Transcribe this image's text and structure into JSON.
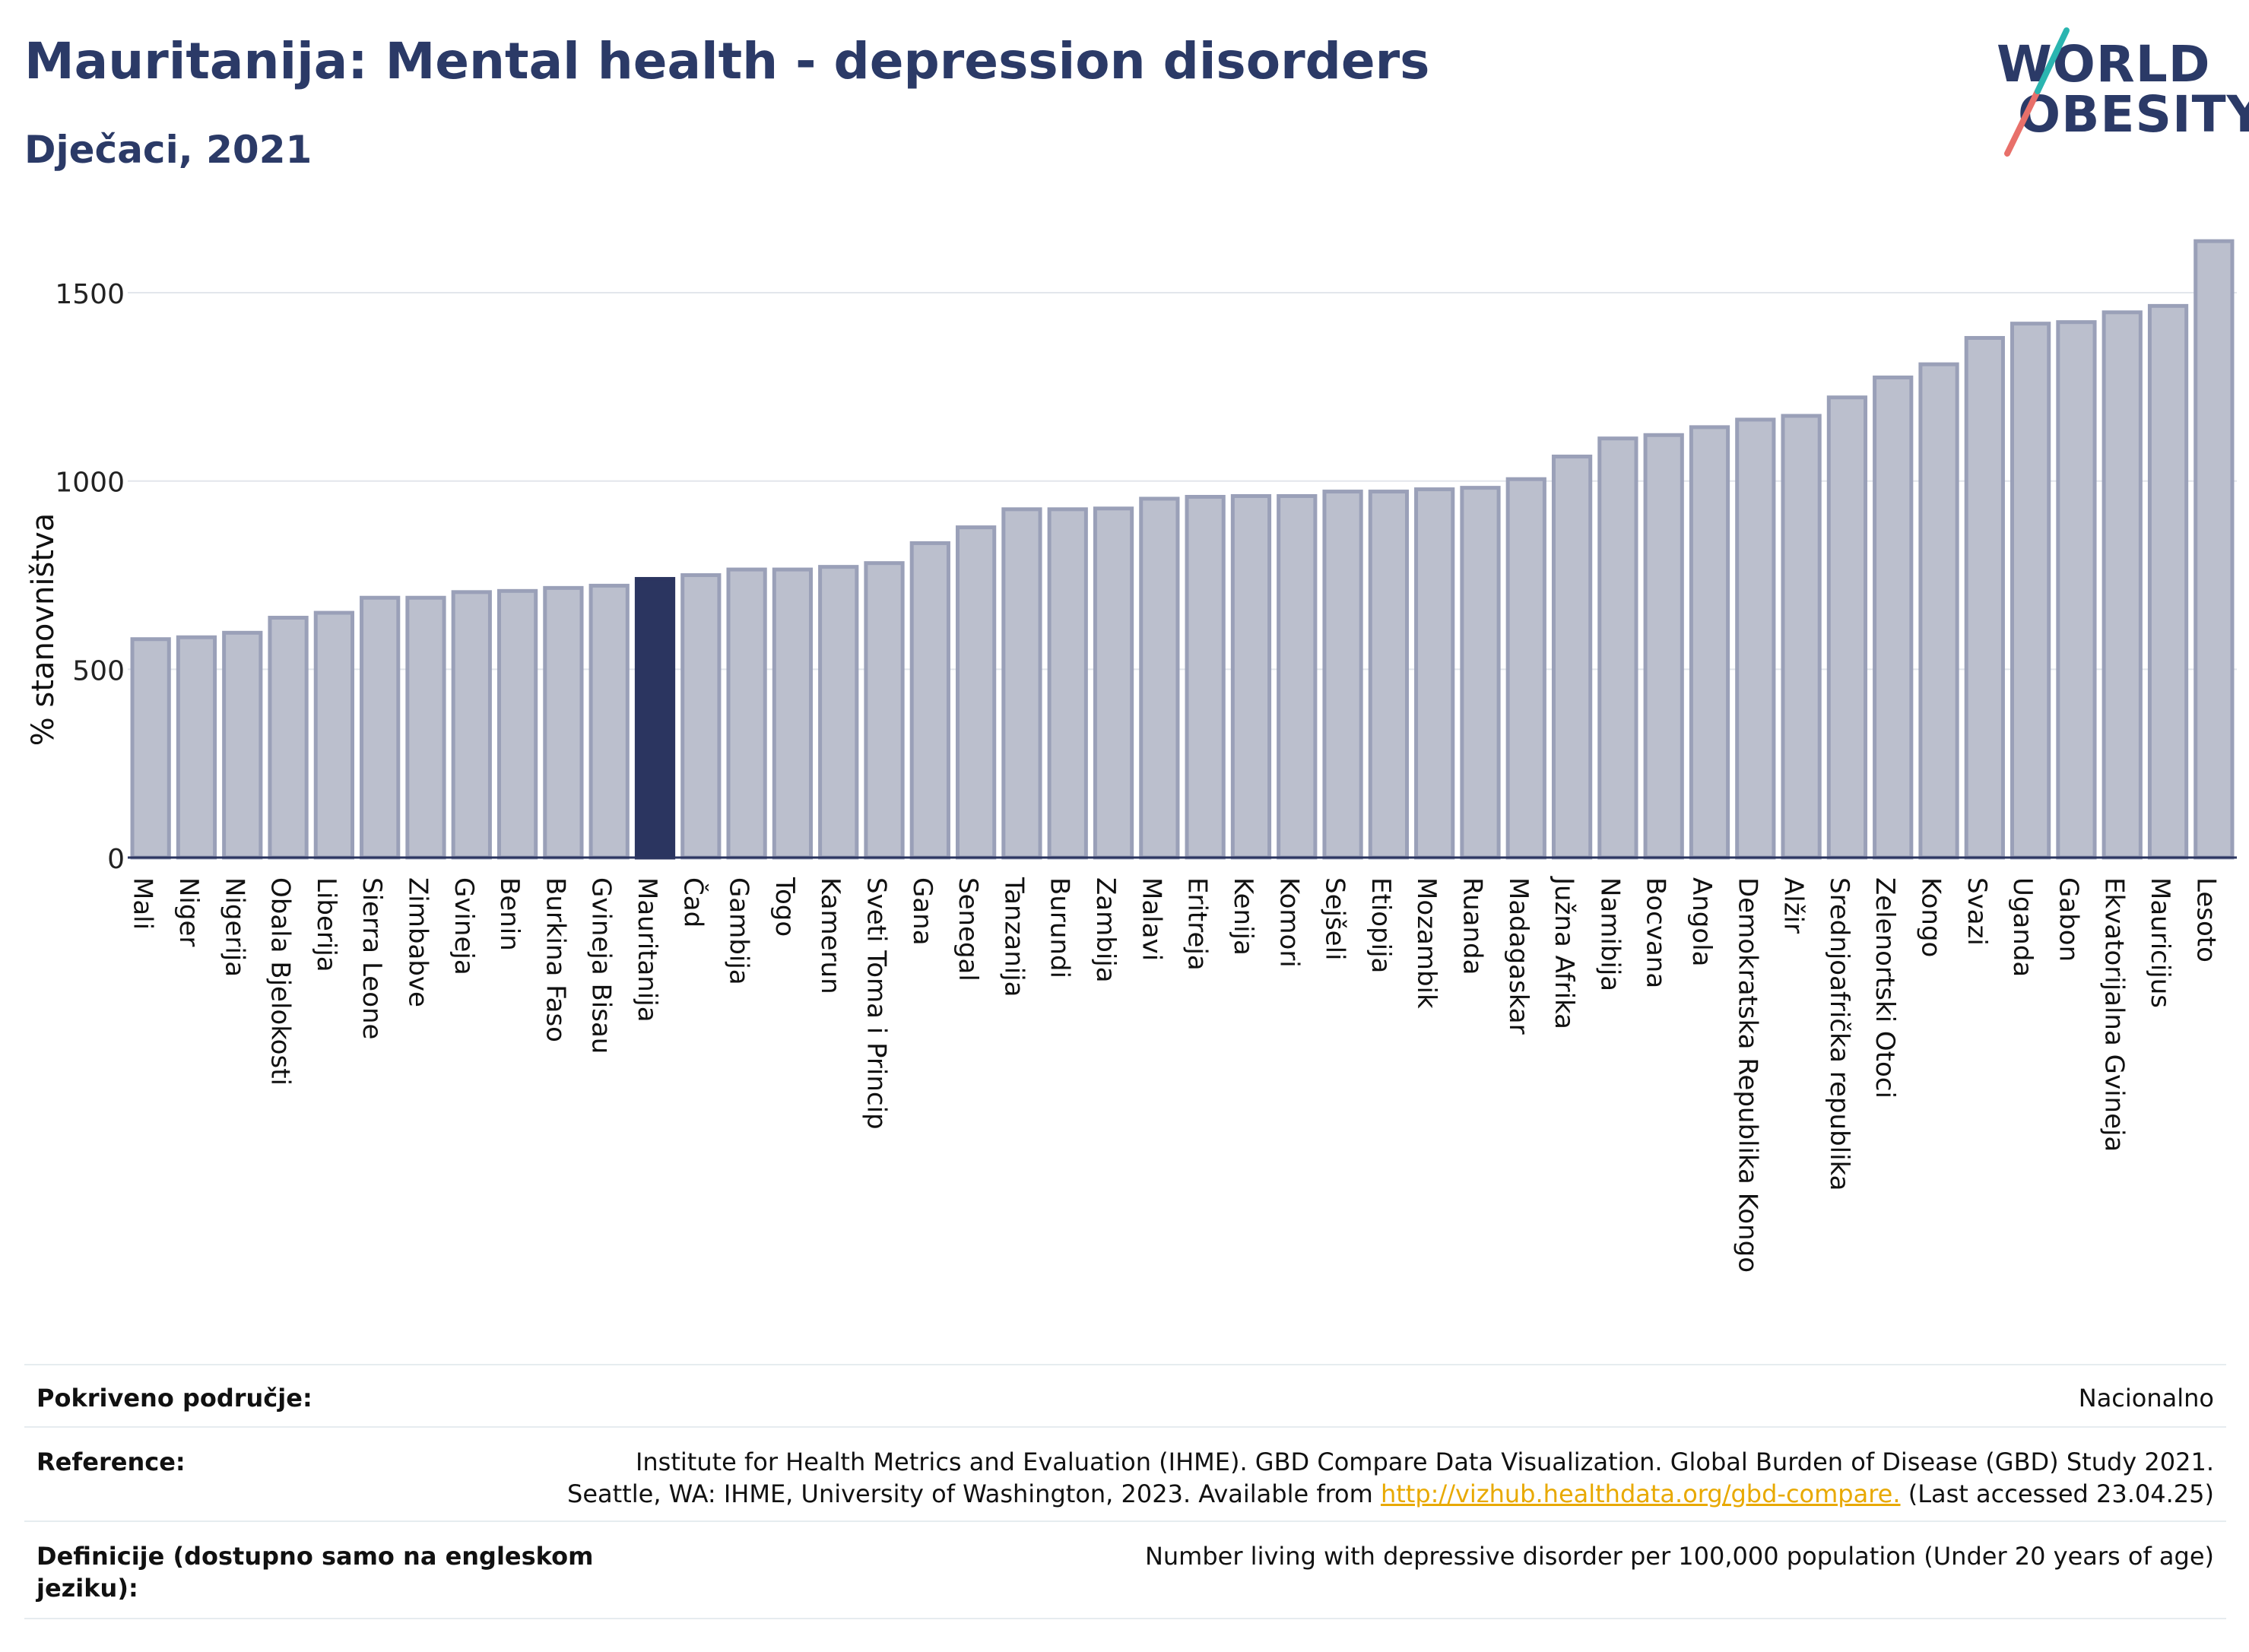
{
  "header": {
    "title": "Mauritanija: Mental health - depression disorders",
    "subtitle": "Dječaci, 2021",
    "logo_line1": "WORLD",
    "logo_line2": "OBESITY"
  },
  "chart_data": {
    "type": "bar",
    "ylabel": "% stanovništva",
    "ylim": [
      0,
      1700
    ],
    "yticks": [
      0,
      500,
      1000,
      1500
    ],
    "grid": true,
    "highlight": "Mauritanija",
    "colors": {
      "bar": "#bbbfcd",
      "bar_stroke": "#9aa0b8",
      "highlight": "#2b3560",
      "grid": "#e3e6ec",
      "axis": "#2b3560"
    },
    "categories": [
      "Mali",
      "Niger",
      "Nigerija",
      "Obala Bjelokosti",
      "Liberija",
      "Sierra Leone",
      "Zimbabve",
      "Gvineja",
      "Benin",
      "Burkina Faso",
      "Gvineja Bisau",
      "Mauritanija",
      "Čad",
      "Gambija",
      "Togo",
      "Kamerun",
      "Sveti Toma i Princip",
      "Gana",
      "Senegal",
      "Tanzanija",
      "Burundi",
      "Zambija",
      "Malavi",
      "Eritreja",
      "Kenija",
      "Komori",
      "Sejšeli",
      "Etiopija",
      "Mozambik",
      "Ruanda",
      "Madagaskar",
      "Južna Afrika",
      "Namibija",
      "Bocvana",
      "Angola",
      "Demokratska Republika Kongo",
      "Alžir",
      "Srednjoafrička republika",
      "Zelenortski Otoci",
      "Kongo",
      "Svazi",
      "Uganda",
      "Gabon",
      "Ekvatorijalna Gvineja",
      "Mauricijus",
      "Lesoto"
    ],
    "values": [
      580,
      585,
      597,
      637,
      650,
      690,
      690,
      705,
      708,
      716,
      722,
      740,
      750,
      765,
      765,
      772,
      782,
      835,
      877,
      925,
      925,
      927,
      953,
      958,
      960,
      960,
      972,
      972,
      978,
      982,
      1005,
      1065,
      1113,
      1122,
      1143,
      1163,
      1173,
      1222,
      1275,
      1310,
      1380,
      1418,
      1422,
      1448,
      1465,
      1637
    ]
  },
  "footer": {
    "coverage_label": "Pokriveno područje:",
    "coverage_value": "Nacionalno",
    "reference_label": "Reference:",
    "reference_line1": "Institute for Health Metrics and Evaluation (IHME). GBD Compare Data Visualization. Global Burden of Disease (GBD) Study 2021.",
    "reference_line2_prefix": "Seattle, WA: IHME, University of Washington, 2023. Available from",
    "reference_link": "http://vizhub.healthdata.org/gbd-compare.",
    "reference_suffix": "(Last accessed 23.04.25)",
    "definition_label_line1": "Definicije (dostupno samo na engleskom",
    "definition_label_line2": "jeziku):",
    "definition_value": "Number living with depressive disorder per 100,000 population (Under 20 years of age)"
  }
}
